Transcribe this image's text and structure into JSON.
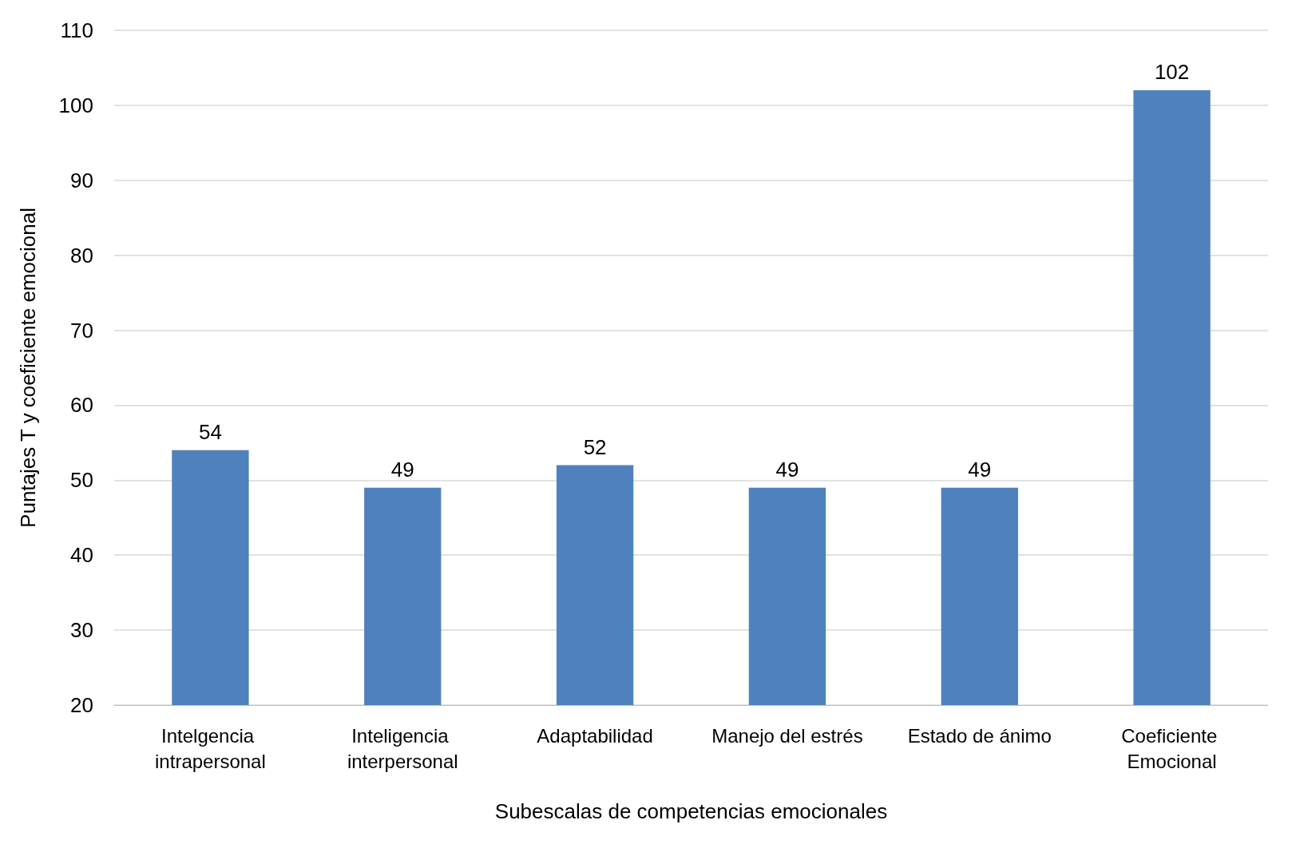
{
  "chart_data": {
    "type": "bar",
    "xlabel": "Subescalas de competencias emocionales",
    "ylabel": "Puntajes T y coeficiente emocional",
    "categories": [
      "Intelgencia intrapersonal",
      "Inteligencia interpersonal",
      "Adaptabilidad",
      "Manejo del estrés",
      "Estado de ánimo",
      "Coeficiente Emocional"
    ],
    "values": [
      54,
      49,
      52,
      49,
      49,
      102
    ],
    "color": "#4f81bd",
    "ylim": [
      20,
      110
    ],
    "yticks": [
      20,
      30,
      40,
      50,
      60,
      70,
      80,
      90,
      100,
      110
    ],
    "grid": "y",
    "data_labels": true
  }
}
